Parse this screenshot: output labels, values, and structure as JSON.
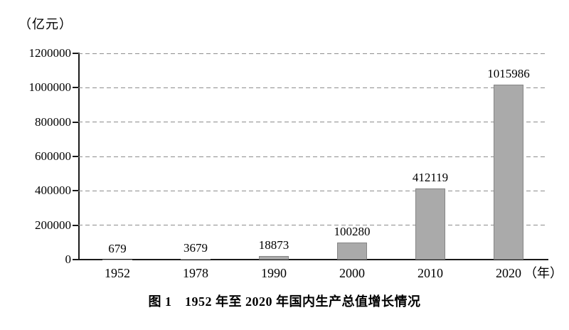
{
  "unit_label": "（亿元）",
  "caption": "图 1　1952 年至 2020 年国内生产总值增长情况",
  "x_axis": {
    "unit_suffix": "（年）"
  },
  "colors": {
    "bar_fill": "#aaaaaa",
    "bar_border": "#858585",
    "axis": "#1a1a1a",
    "gridline": "#8d8d8d",
    "text": "#000000",
    "background": "#ffffff"
  },
  "chart_data": {
    "type": "bar",
    "title": "图 1　1952 年至 2020 年国内生产总值增长情况",
    "categories": [
      "1952",
      "1978",
      "1990",
      "2000",
      "2010",
      "2020"
    ],
    "values": [
      679,
      3679,
      18873,
      100280,
      412119,
      1015986
    ],
    "data_labels": [
      "679",
      "3679",
      "18873",
      "100280",
      "412119",
      "1015986"
    ],
    "xlabel": "年",
    "ylabel": "亿元",
    "ylim": [
      0,
      1200000
    ],
    "yticks": [
      0,
      200000,
      400000,
      600000,
      800000,
      1000000,
      1200000
    ],
    "ytick_labels": [
      "0",
      "200000",
      "400000",
      "600000",
      "800000",
      "1000000",
      "1200000"
    ],
    "grid": "dashed-horizontal",
    "legend": "none"
  }
}
